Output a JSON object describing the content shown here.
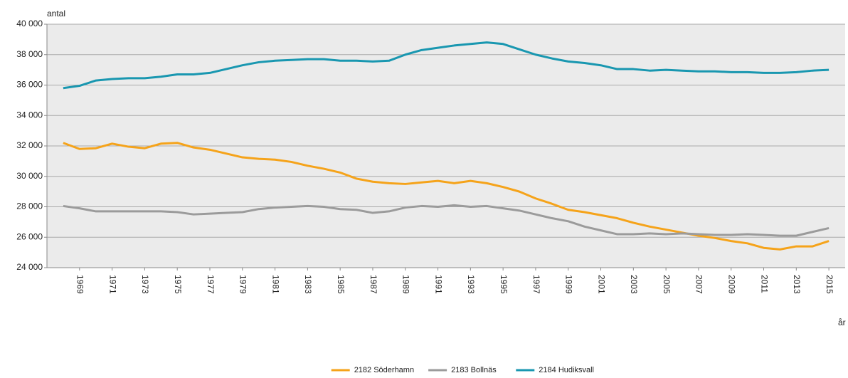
{
  "chart_data": {
    "type": "line",
    "y_axis_label": "antal",
    "x_axis_label": "år",
    "x": [
      1968,
      1969,
      1970,
      1971,
      1972,
      1973,
      1974,
      1975,
      1976,
      1977,
      1978,
      1979,
      1980,
      1981,
      1982,
      1983,
      1984,
      1985,
      1986,
      1987,
      1988,
      1989,
      1990,
      1991,
      1992,
      1993,
      1994,
      1995,
      1996,
      1997,
      1998,
      1999,
      2000,
      2001,
      2002,
      2003,
      2004,
      2005,
      2006,
      2007,
      2008,
      2009,
      2010,
      2011,
      2012,
      2013,
      2014,
      2015
    ],
    "xlim": [
      1967,
      2016
    ],
    "xticks": [
      1969,
      1971,
      1973,
      1975,
      1977,
      1979,
      1981,
      1983,
      1985,
      1987,
      1989,
      1991,
      1993,
      1995,
      1997,
      1999,
      2001,
      2003,
      2005,
      2007,
      2009,
      2011,
      2013,
      2015
    ],
    "ylim": [
      24000,
      40000
    ],
    "yticks": [
      {
        "value": 24000,
        "label": "24 000"
      },
      {
        "value": 26000,
        "label": "26 000"
      },
      {
        "value": 28000,
        "label": "28 000"
      },
      {
        "value": 30000,
        "label": "30 000"
      },
      {
        "value": 32000,
        "label": "32 000"
      },
      {
        "value": 34000,
        "label": "34 000"
      },
      {
        "value": 36000,
        "label": "36 000"
      },
      {
        "value": 38000,
        "label": "38 000"
      },
      {
        "value": 40000,
        "label": "40 000"
      }
    ],
    "grid": true,
    "legend": "bottom",
    "series": [
      {
        "name": "2182 Söderhamn",
        "color": "#f5a31a",
        "values": [
          32200,
          31800,
          31850,
          32150,
          31950,
          31850,
          32150,
          32200,
          31900,
          31750,
          31500,
          31250,
          31150,
          31100,
          30950,
          30700,
          30500,
          30250,
          29850,
          29650,
          29550,
          29500,
          29600,
          29700,
          29550,
          29700,
          29550,
          29300,
          29000,
          28550,
          28200,
          27800,
          27650,
          27450,
          27250,
          26950,
          26700,
          26500,
          26300,
          26100,
          25950,
          25750,
          25600,
          25300,
          25200,
          25400,
          25400,
          25750
        ]
      },
      {
        "name": "2183 Bollnäs",
        "color": "#9b9b9b",
        "values": [
          28050,
          27900,
          27700,
          27700,
          27700,
          27700,
          27700,
          27650,
          27500,
          27550,
          27600,
          27650,
          27850,
          27950,
          28000,
          28050,
          28000,
          27850,
          27800,
          27600,
          27700,
          27950,
          28050,
          28000,
          28100,
          28000,
          28050,
          27900,
          27750,
          27500,
          27250,
          27050,
          26700,
          26450,
          26200,
          26200,
          26250,
          26200,
          26250,
          26200,
          26150,
          26150,
          26200,
          26150,
          26100,
          26100,
          26350,
          26600
        ]
      },
      {
        "name": "2184 Hudiksvall",
        "color": "#1997b0",
        "values": [
          35800,
          35950,
          36300,
          36400,
          36450,
          36450,
          36550,
          36700,
          36700,
          36800,
          37050,
          37300,
          37500,
          37600,
          37650,
          37700,
          37700,
          37600,
          37600,
          37550,
          37600,
          38000,
          38300,
          38450,
          38600,
          38700,
          38800,
          38700,
          38350,
          38000,
          37750,
          37550,
          37450,
          37300,
          37050,
          37050,
          36950,
          37000,
          36950,
          36900,
          36900,
          36850,
          36850,
          36800,
          36800,
          36850,
          36950,
          37000
        ]
      }
    ]
  }
}
